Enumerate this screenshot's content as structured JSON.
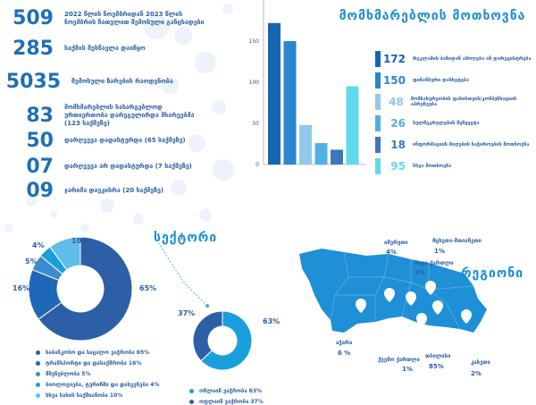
{
  "stats": [
    {
      "num": "509",
      "label": "2022 წლის ნოემბრიდან 2023 წლის ნოემბრის ჩათვლით შემოსული განცხადები"
    },
    {
      "num": "285",
      "label": "საქმის შესწავლა დაიწყო"
    },
    {
      "num": "5035",
      "label": "შემოსული ზარების რაოდენობა"
    },
    {
      "num": "83",
      "label": "მომხმარებლის სასარგებლოდ ურთიერთობა დარეგულირდა მხარეებმა (123 საქმეზე)"
    },
    {
      "num": "50",
      "label": "დარღვევა დადასტურდა (65 საქმეზე)"
    },
    {
      "num": "07",
      "label": "დარღვევა არ დადასტურდა (7 საქმეზე)"
    },
    {
      "num": "09",
      "label": "ჯარიმა დაეკისრა (20 საქმეზე)"
    }
  ],
  "bar_title": "მომხმარებლის მოთხოვნა",
  "legend": [
    {
      "value": "172",
      "label": "რეკლამის ბაზიდან ამოღება ან დარეგისტრება"
    },
    {
      "value": "150",
      "label": "ფინანსური დასხეტება"
    },
    {
      "value": "48",
      "label": "მომსახურეობის ფასისთვის/კომპენსაციის აპრუნვება"
    },
    {
      "value": "26",
      "label": "ხელშეკრულების შეწყვეტა"
    },
    {
      "value": "18",
      "label": "ინფორმაციის მიღების საჭიროების მოთხოვნა"
    },
    {
      "value": "95",
      "label": "სხვა მოთხოვნა"
    }
  ],
  "sector_title": "სექტორი",
  "region_title": "რეგიონი",
  "pie_legend": [
    "საბანკოსო და საცალო ვაჭრობა 65%",
    "ტრანსპორტი და დასაქმრობა 16%",
    "მშენებლობა 5%",
    "ბიოლოგიება, ტურიზმი და დასვენება 4%",
    "სხვა სახის საქმიანობა 10%"
  ],
  "pie_pct_labels": [
    "4%",
    "10%",
    "5%",
    "16%",
    "65%"
  ],
  "donut2_legend": [
    "ონლაინ ვაჭრობა 63%",
    "ოფლაინ ვაჭრობა 37%"
  ],
  "donut2_pct_labels": [
    "37%",
    "63%"
  ],
  "regions": [
    {
      "name": "იმერეთი",
      "pct": "4%"
    },
    {
      "name": "მცხეთა-მთიანეთი",
      "pct": "1%"
    },
    {
      "name": "შიდა ქართლი",
      "pct": "1%"
    },
    {
      "name": "აჭარა",
      "pct": "6 %"
    },
    {
      "name": "ქვემო ქართლი",
      "pct": "1%"
    },
    {
      "name": "თბილისი",
      "pct": "85%"
    },
    {
      "name": "კახეთი",
      "pct": "2%"
    }
  ],
  "colors": {
    "c1": "#1565b0",
    "c2": "#2a86cf",
    "c3": "#90c8ec",
    "c4": "#4fb1e3",
    "c5": "#3d79b6",
    "c6": "#5fd9ee",
    "pie_main": "#2d5fa6",
    "pie_dark": "#1e68b7",
    "pie_mid": "#3c8bcf",
    "pie_light": "#1a9fdc",
    "pie_pale": "#5fbde9",
    "map": "#1f8fd6"
  },
  "chart_data": [
    {
      "type": "bar",
      "title": "მომხმარებლის მოთხოვნა",
      "categories": [
        "რეკლამის ბაზიდან ამოღება ან დარეგისტრება",
        "ფინანსური დასხეტება",
        "მომსახურეობის ფასისთვის/კომპენსაციის აპრუნვება",
        "ხელშეკრულების შეწყვეტა",
        "ინფორმაციის მიღების საჭიროების მოთხოვნა",
        "სხვა მოთხოვნა"
      ],
      "values": [
        172,
        150,
        48,
        26,
        18,
        95
      ],
      "ylim": [
        0,
        200
      ],
      "yticks": [
        0,
        50,
        100,
        150
      ]
    },
    {
      "type": "pie",
      "categories": [
        "საბანკოსო და საცალო ვაჭრობა",
        "ტრანსპორტი და დასაქმრობა",
        "მშენებლობა",
        "ბიოლოგიება, ტურიზმი და დასვენება",
        "სხვა სახის საქმიანობა"
      ],
      "values": [
        65,
        16,
        5,
        4,
        10
      ]
    },
    {
      "type": "pie",
      "categories": [
        "ონლაინ ვაჭრობა",
        "ოფლაინ ვაჭრობა"
      ],
      "values": [
        63,
        37
      ]
    }
  ]
}
